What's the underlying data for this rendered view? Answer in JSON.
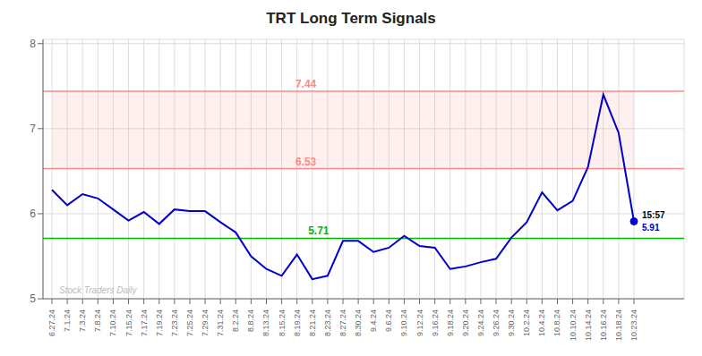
{
  "chart_data": {
    "type": "line",
    "title": "TRT Long Term Signals",
    "categories": [
      "6.27.24",
      "7.1.24",
      "7.3.24",
      "7.8.24",
      "7.10.24",
      "7.15.24",
      "7.17.24",
      "7.19.24",
      "7.23.24",
      "7.25.24",
      "7.29.24",
      "7.31.24",
      "8.2.24",
      "8.8.24",
      "8.13.24",
      "8.15.24",
      "8.19.24",
      "8.21.24",
      "8.23.24",
      "8.27.24",
      "8.30.24",
      "9.4.24",
      "9.6.24",
      "9.10.24",
      "9.12.24",
      "9.16.24",
      "9.18.24",
      "9.20.24",
      "9.24.24",
      "9.26.24",
      "9.30.24",
      "10.2.24",
      "10.4.24",
      "10.8.24",
      "10.10.24",
      "10.14.24",
      "10.16.24",
      "10.18.24",
      "10.23.24"
    ],
    "values": [
      6.28,
      6.1,
      6.23,
      6.18,
      6.05,
      5.92,
      6.02,
      5.88,
      6.05,
      6.03,
      6.03,
      5.9,
      5.78,
      5.5,
      5.35,
      5.27,
      5.52,
      5.23,
      5.27,
      5.68,
      5.68,
      5.55,
      5.6,
      5.74,
      5.62,
      5.6,
      5.35,
      5.38,
      5.43,
      5.47,
      5.72,
      5.9,
      6.25,
      6.04,
      6.15,
      6.55,
      7.4,
      6.95,
      5.91
    ],
    "color": "#0000cc",
    "ylim": [
      5.0,
      8.05
    ],
    "yticks": [
      5,
      6,
      7,
      8
    ],
    "grid": true,
    "hlines": [
      {
        "value": 7.44,
        "label": "7.44",
        "color": "#ff8888"
      },
      {
        "value": 6.53,
        "label": "6.53",
        "color": "#ff8888"
      },
      {
        "value": 5.71,
        "label": "5.71",
        "color": "#00bb00"
      }
    ],
    "band": {
      "from": 6.53,
      "to": 7.44,
      "color": "#ff8888"
    },
    "last_point": {
      "label": "15:57",
      "value": 5.91
    },
    "watermark": "Stock Traders Daily"
  }
}
